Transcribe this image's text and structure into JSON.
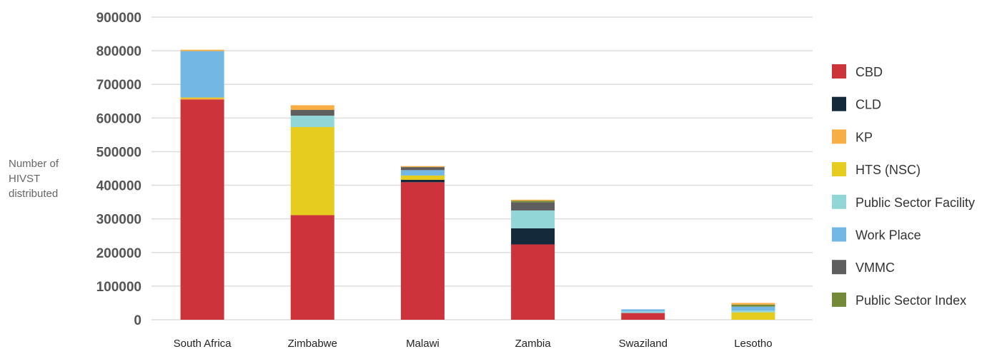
{
  "chart_data": {
    "type": "bar",
    "stacked": true,
    "title": "",
    "ylabel_lines": [
      "Number of",
      "HIVST",
      "distributed"
    ],
    "xlabel": "",
    "ylim": [
      0,
      900000
    ],
    "yticks": [
      "0",
      "100000",
      "200000",
      "300000",
      "400000",
      "500000",
      "600000",
      "700000",
      "800000",
      "900000"
    ],
    "yticks_values": [
      0,
      100000,
      200000,
      300000,
      400000,
      500000,
      600000,
      700000,
      800000,
      900000
    ],
    "grid": true,
    "legend_position": "right",
    "categories": [
      "South Africa",
      "Zimbabwe",
      "Malawi",
      "Zambia",
      "Swaziland",
      "Lesotho"
    ],
    "series": [
      {
        "name": "CBD",
        "color": "#cc333b",
        "values": [
          655000,
          311000,
          409000,
          224000,
          20000,
          0
        ]
      },
      {
        "name": "CLD",
        "color": "#14293a",
        "values": [
          0,
          0,
          7000,
          48000,
          0,
          0
        ]
      },
      {
        "name": "KP",
        "color": "#f6ae45",
        "values": [
          3000,
          0,
          0,
          0,
          0,
          0
        ]
      },
      {
        "name": "HTS (NSC)",
        "color": "#e6cc1e",
        "values": [
          3000,
          262000,
          13000,
          0,
          0,
          22000
        ]
      },
      {
        "name": "Public Sector Facility",
        "color": "#92d6d8",
        "values": [
          0,
          34000,
          0,
          53000,
          5000,
          5000
        ]
      },
      {
        "name": "Work Place",
        "color": "#73b8e4",
        "values": [
          138000,
          0,
          16000,
          0,
          6000,
          12000
        ]
      },
      {
        "name": "VMMC",
        "color": "#5e5e5e",
        "values": [
          0,
          17000,
          9000,
          24000,
          0,
          0
        ]
      },
      {
        "name": "Public Sector Index",
        "color": "#748a39",
        "values": [
          0,
          0,
          0,
          5000,
          0,
          6000
        ]
      },
      {
        "name": "KP",
        "color": "#f6ae45",
        "values": [
          4000,
          14000,
          3000,
          3000,
          0,
          5000
        ]
      }
    ]
  }
}
